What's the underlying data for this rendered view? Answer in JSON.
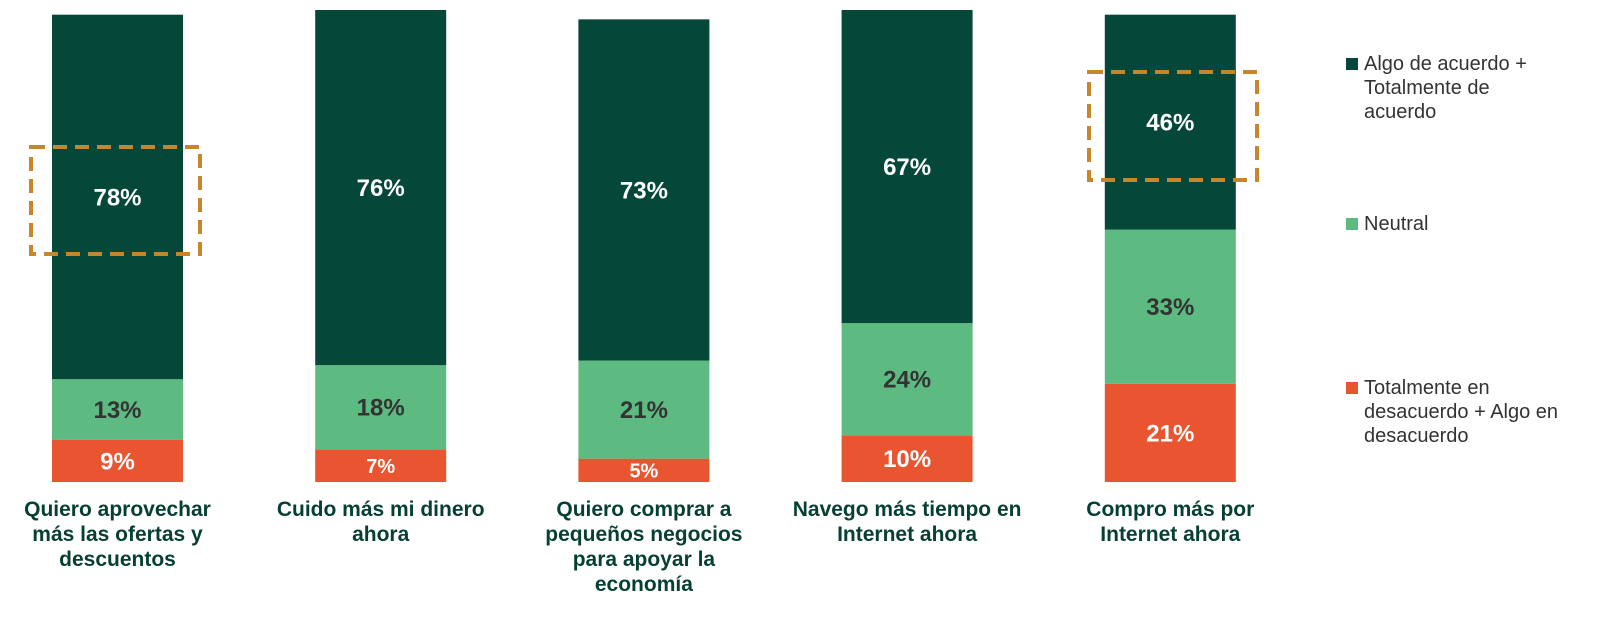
{
  "chart_data": {
    "type": "stacked_bar",
    "categories": [
      "Quiero aprovechar más las ofertas y descuentos",
      "Cuido más mi dinero ahora",
      "Quiero comprar a pequeños negocios para apoyar la economía",
      "Navego más tiempo en Internet ahora",
      "Compro más por Internet ahora"
    ],
    "series": [
      {
        "name": "Algo de acuerdo + Totalmente de acuerdo",
        "color": "#05483a",
        "values": [
          78,
          76,
          73,
          67,
          46
        ],
        "value_labels": [
          "78%",
          "76%",
          "73%",
          "67%",
          "46%"
        ]
      },
      {
        "name": "Neutral",
        "color": "#5dba80",
        "values": [
          13,
          18,
          21,
          24,
          33
        ],
        "value_labels": [
          "13%",
          "18%",
          "21%",
          "24%",
          "33%"
        ]
      },
      {
        "name": "Totalmente en desacuerdo + Algo en desacuerdo",
        "color": "#e85530",
        "values": [
          9,
          7,
          5,
          10,
          21
        ],
        "value_labels": [
          "9%",
          "7%",
          "5%",
          "10%",
          "21%"
        ]
      }
    ],
    "ylim": [
      0,
      101
    ],
    "legend": "right"
  }
}
